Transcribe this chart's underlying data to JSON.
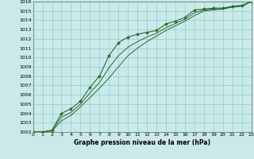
{
  "title": "Graphe pression niveau de la mer (hPa)",
  "background_color": "#caeaea",
  "grid_color": "#90cccc",
  "line_color": "#2d6a2d",
  "xlim": [
    0,
    23
  ],
  "ylim": [
    1002,
    1016
  ],
  "yticks": [
    1002,
    1003,
    1004,
    1005,
    1006,
    1007,
    1008,
    1009,
    1010,
    1011,
    1012,
    1013,
    1014,
    1015,
    1016
  ],
  "xticks": [
    0,
    1,
    2,
    3,
    4,
    5,
    6,
    7,
    8,
    9,
    10,
    11,
    12,
    13,
    14,
    15,
    16,
    17,
    18,
    19,
    20,
    21,
    22,
    23
  ],
  "series1_x": [
    0,
    1,
    2,
    3,
    4,
    5,
    6,
    7,
    8,
    9,
    10,
    11,
    12,
    13,
    14,
    15,
    16,
    17,
    18,
    19,
    20,
    21,
    22,
    23
  ],
  "series1_y": [
    1002.0,
    1002.0,
    1002.2,
    1004.0,
    1004.5,
    1005.3,
    1006.8,
    1008.0,
    1010.2,
    1011.6,
    1012.2,
    1012.5,
    1012.7,
    1012.9,
    1013.6,
    1013.9,
    1014.3,
    1015.1,
    1015.2,
    1015.3,
    1015.3,
    1015.5,
    1015.6,
    1016.0
  ],
  "series2_x": [
    0,
    1,
    2,
    3,
    4,
    5,
    6,
    7,
    8,
    9,
    10,
    11,
    12,
    13,
    14,
    15,
    16,
    17,
    18,
    19,
    20,
    21,
    22,
    23
  ],
  "series2_y": [
    1002.0,
    1002.0,
    1002.1,
    1003.2,
    1003.8,
    1004.7,
    1005.7,
    1006.7,
    1007.8,
    1009.0,
    1010.2,
    1011.0,
    1011.7,
    1012.3,
    1012.9,
    1013.4,
    1013.9,
    1014.5,
    1015.0,
    1015.1,
    1015.2,
    1015.4,
    1015.5,
    1016.0
  ],
  "series3_x": [
    0,
    1,
    2,
    3,
    4,
    5,
    6,
    7,
    8,
    9,
    10,
    11,
    12,
    13,
    14,
    15,
    16,
    17,
    18,
    19,
    20,
    21,
    22,
    23
  ],
  "series3_y": [
    1002.0,
    1002.0,
    1002.15,
    1003.6,
    1004.1,
    1005.0,
    1006.2,
    1007.3,
    1008.9,
    1010.2,
    1011.1,
    1011.7,
    1012.2,
    1012.6,
    1013.2,
    1013.65,
    1014.1,
    1014.8,
    1015.1,
    1015.2,
    1015.25,
    1015.45,
    1015.55,
    1016.0
  ]
}
